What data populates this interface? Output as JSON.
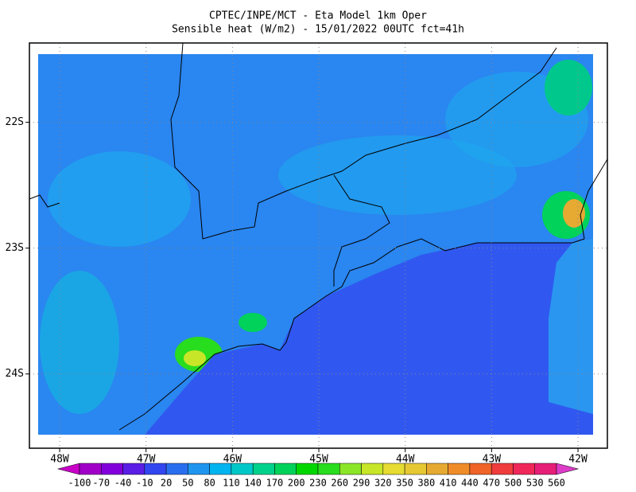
{
  "map": {
    "title": [
      "CPTEC/INPE/MCT -  Eta Model 1km Oper",
      "Sensible heat (W/m2) - 15/01/2022 00UTC fct=41h"
    ],
    "lon_range": [
      -48.35,
      -41.66
    ],
    "lat_range": [
      -21.37,
      -24.59
    ],
    "lon_ticks": [
      {
        "value": -48,
        "label": "48W"
      },
      {
        "value": -47,
        "label": "47W"
      },
      {
        "value": -46,
        "label": "46W"
      },
      {
        "value": -45,
        "label": "45W"
      },
      {
        "value": -44,
        "label": "44W"
      },
      {
        "value": -43,
        "label": "43W"
      },
      {
        "value": -42,
        "label": "42W"
      }
    ],
    "lat_ticks": [
      {
        "value": -22,
        "label": "22S"
      },
      {
        "value": -23,
        "label": "23S"
      },
      {
        "value": -24,
        "label": "24S"
      }
    ],
    "colorbar": {
      "levels": [
        -100,
        -70,
        -40,
        -10,
        20,
        50,
        80,
        110,
        140,
        170,
        200,
        230,
        260,
        290,
        320,
        350,
        380,
        410,
        440,
        470,
        500,
        530,
        560
      ],
      "colors": [
        "#c800c8",
        "#a000c8",
        "#8200dc",
        "#5a1ee6",
        "#3246f0",
        "#2a6ef0",
        "#1e96f0",
        "#00b4f0",
        "#00c8c8",
        "#00d28c",
        "#00d25a",
        "#00d700",
        "#28dc1e",
        "#8ce628",
        "#c8e628",
        "#e6dc32",
        "#e6c832",
        "#e6aa32",
        "#f08c28",
        "#f06428",
        "#f03c3c",
        "#f0285a",
        "#e61e78",
        "#dc3cc8"
      ]
    }
  }
}
